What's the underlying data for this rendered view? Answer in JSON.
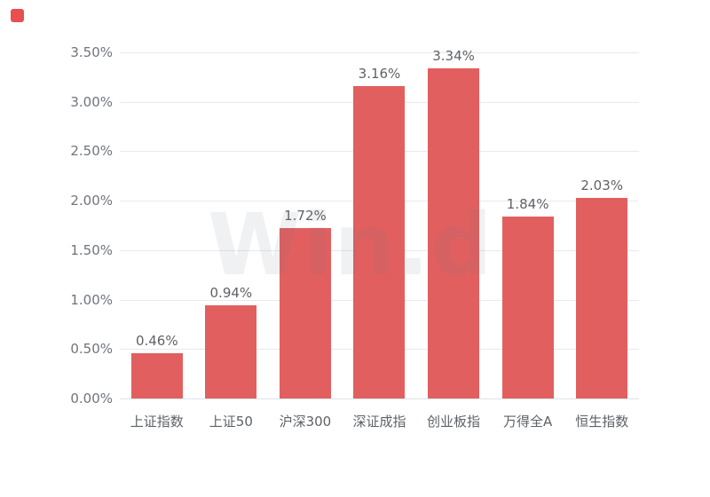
{
  "watermark": {
    "text": "Win.d"
  },
  "logo": {
    "color": "#e94f4f"
  },
  "colors": {
    "bar": "#e25f5f",
    "grid": "#e5eaf1",
    "axis_line": "#dde3ec",
    "y_tick_label": "#70747d",
    "value_label": "#606266",
    "category_label": "#5e6166",
    "watermark": "rgba(110,116,128,0.10)"
  },
  "chart_data": {
    "type": "bar",
    "title": "",
    "xlabel": "",
    "ylabel": "",
    "categories": [
      "上证指数",
      "上证50",
      "沪深300",
      "深证成指",
      "创业板指",
      "万得全A",
      "恒生指数"
    ],
    "values": [
      0.46,
      0.94,
      1.72,
      3.16,
      3.34,
      1.84,
      2.03
    ],
    "value_labels": [
      "0.46%",
      "0.94%",
      "1.72%",
      "3.16%",
      "3.34%",
      "1.84%",
      "2.03%"
    ],
    "y_ticks": [
      "0.00%",
      "0.50%",
      "1.00%",
      "1.50%",
      "2.00%",
      "2.50%",
      "3.00%",
      "3.50%"
    ],
    "ylim": [
      0,
      3.5
    ],
    "grid": true,
    "legend": false
  }
}
